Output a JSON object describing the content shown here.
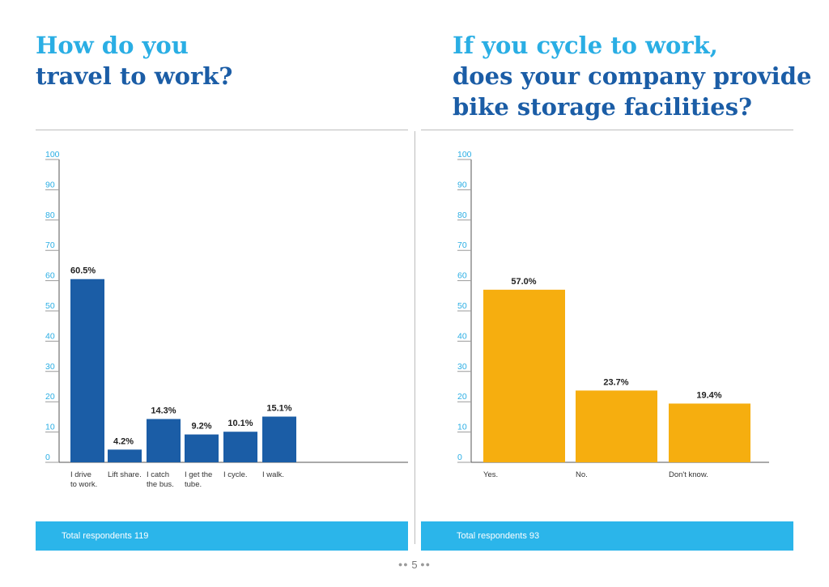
{
  "page": {
    "number": "5",
    "dots_left": "●●",
    "dots_right": "●●"
  },
  "left": {
    "title_line1": "How do you",
    "title_line2": "travel to work?",
    "footer": "Total respondents 119"
  },
  "right": {
    "title_line1": "If you cycle to work,",
    "title_line2": "does your company provide",
    "title_line3": "bike storage facilities?",
    "footer": "Total respondents 93"
  },
  "colors": {
    "title_light": "#2aaee4",
    "title_dark": "#1b5da6",
    "bar_blue": "#1b5da6",
    "bar_orange": "#f6ae0f",
    "tick_label": "#2aaee4",
    "footer_bg": "#2bb5ea"
  },
  "chart_data": [
    {
      "type": "bar",
      "title": "How do you travel to work?",
      "categories": [
        [
          "I drive",
          "to work."
        ],
        [
          "Lift share."
        ],
        [
          "I catch",
          "the bus."
        ],
        [
          "I get the",
          "tube."
        ],
        [
          "I cycle."
        ],
        [
          "I walk."
        ]
      ],
      "values": [
        60.5,
        4.2,
        14.3,
        9.2,
        10.1,
        15.1
      ],
      "value_labels": [
        "60.5%",
        "4.2%",
        "14.3%",
        "9.2%",
        "10.1%",
        "15.1%"
      ],
      "ylim": [
        0,
        100
      ],
      "yticks": [
        "0",
        "10",
        "20",
        "30",
        "40",
        "50",
        "60",
        "70",
        "80",
        "90",
        "100"
      ],
      "color": "#1b5da6"
    },
    {
      "type": "bar",
      "title": "If you cycle to work, does your company provide bike storage facilities?",
      "categories": [
        [
          "Yes."
        ],
        [
          "No."
        ],
        [
          "Don't know."
        ]
      ],
      "values": [
        57.0,
        23.7,
        19.4
      ],
      "value_labels": [
        "57.0%",
        "23.7%",
        "19.4%"
      ],
      "ylim": [
        0,
        100
      ],
      "yticks": [
        "0",
        "10",
        "20",
        "30",
        "40",
        "50",
        "60",
        "70",
        "80",
        "90",
        "100"
      ],
      "color": "#f6ae0f"
    }
  ]
}
